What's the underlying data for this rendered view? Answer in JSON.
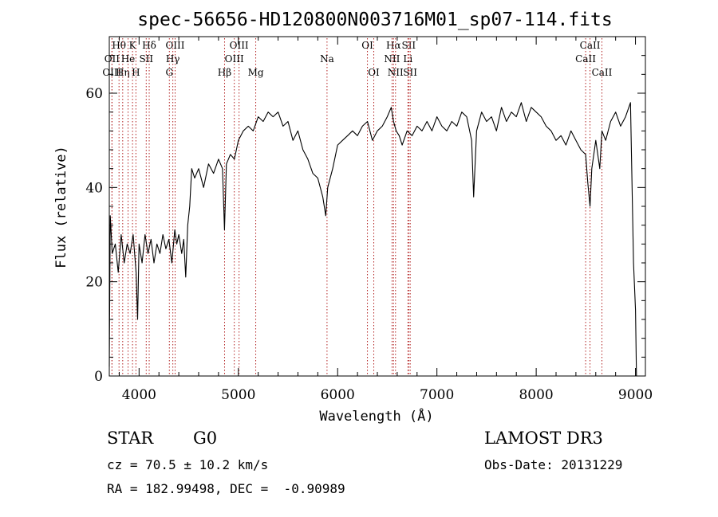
{
  "chart_data": {
    "type": "line",
    "title": "spec-56656-HD120800N003716M01_sp07-114.fits",
    "xlabel": "Wavelength (Å)",
    "ylabel": "Flux (relative)",
    "xlim": [
      3700,
      9100
    ],
    "ylim": [
      0,
      72
    ],
    "x_ticks": [
      4000,
      5000,
      6000,
      7000,
      8000,
      9000
    ],
    "y_ticks": [
      0,
      20,
      40,
      60
    ],
    "grid": false,
    "line_color": "#000000",
    "marker_color": "#b22222",
    "series": [
      {
        "x": [
          3700,
          3710,
          3730,
          3760,
          3790,
          3820,
          3850,
          3880,
          3910,
          3940,
          3970,
          3985,
          4000,
          4030,
          4060,
          4090,
          4120,
          4150,
          4180,
          4210,
          4240,
          4270,
          4300,
          4330,
          4360,
          4380,
          4400,
          4430,
          4450,
          4470,
          4490,
          4510,
          4530,
          4560,
          4600,
          4650,
          4700,
          4750,
          4800,
          4840,
          4860,
          4880,
          4920,
          4960,
          5000,
          5050,
          5100,
          5150,
          5200,
          5250,
          5300,
          5350,
          5400,
          5450,
          5500,
          5550,
          5600,
          5650,
          5700,
          5750,
          5800,
          5850,
          5880,
          5900,
          5950,
          6000,
          6050,
          6100,
          6150,
          6200,
          6250,
          6300,
          6350,
          6400,
          6450,
          6500,
          6540,
          6563,
          6590,
          6620,
          6650,
          6700,
          6750,
          6800,
          6850,
          6900,
          6950,
          7000,
          7050,
          7100,
          7150,
          7200,
          7250,
          7300,
          7350,
          7370,
          7400,
          7450,
          7500,
          7550,
          7600,
          7650,
          7700,
          7750,
          7800,
          7850,
          7900,
          7950,
          8000,
          8050,
          8100,
          8150,
          8200,
          8250,
          8300,
          8350,
          8400,
          8450,
          8498,
          8520,
          8542,
          8560,
          8600,
          8640,
          8662,
          8700,
          8750,
          8800,
          8850,
          8900,
          8950,
          8980,
          9000,
          9010
        ],
        "values": [
          2,
          34,
          26,
          28,
          22,
          30,
          24,
          28,
          26,
          30,
          22,
          12,
          28,
          24,
          30,
          26,
          29,
          24,
          28,
          26,
          30,
          27,
          29,
          24,
          31,
          28,
          30,
          26,
          29,
          21,
          32,
          36,
          44,
          42,
          44,
          40,
          45,
          43,
          46,
          44,
          31,
          45,
          47,
          46,
          50,
          52,
          53,
          52,
          55,
          54,
          56,
          55,
          56,
          53,
          54,
          50,
          52,
          48,
          46,
          43,
          42,
          38,
          34,
          40,
          44,
          49,
          50,
          51,
          52,
          51,
          53,
          54,
          50,
          52,
          53,
          55,
          57,
          54,
          52,
          51,
          49,
          52,
          51,
          53,
          52,
          54,
          52,
          55,
          53,
          52,
          54,
          53,
          56,
          55,
          50,
          38,
          52,
          56,
          54,
          55,
          52,
          57,
          54,
          56,
          55,
          58,
          54,
          57,
          56,
          55,
          53,
          52,
          50,
          51,
          49,
          52,
          50,
          48,
          47,
          41,
          36,
          44,
          50,
          44,
          52,
          50,
          54,
          56,
          53,
          55,
          58,
          24,
          14,
          0
        ]
      }
    ],
    "line_markers": [
      {
        "label": "Hθ",
        "x": 3798,
        "row": 1
      },
      {
        "label": "OII",
        "x": 3727,
        "row": 2
      },
      {
        "label": "OIII",
        "x": 3727,
        "row": 3
      },
      {
        "label": "Hη",
        "x": 3835,
        "row": 3
      },
      {
        "label": "He",
        "x": 3889,
        "row": 2
      },
      {
        "label": "K",
        "x": 3934,
        "row": 1
      },
      {
        "label": "SII",
        "x": 4072,
        "row": 2
      },
      {
        "label": "H",
        "x": 3968,
        "row": 3
      },
      {
        "label": "Hδ",
        "x": 4102,
        "row": 1
      },
      {
        "label": "OIII",
        "x": 4363,
        "row": 1
      },
      {
        "label": "Hγ",
        "x": 4340,
        "row": 2
      },
      {
        "label": "G",
        "x": 4305,
        "row": 3
      },
      {
        "label": "OIII",
        "x": 5007,
        "row": 1
      },
      {
        "label": "OIII",
        "x": 4959,
        "row": 2
      },
      {
        "label": "Hβ",
        "x": 4861,
        "row": 3
      },
      {
        "label": "Mg",
        "x": 5175,
        "row": 3
      },
      {
        "label": "Na",
        "x": 5893,
        "row": 2
      },
      {
        "label": "OI",
        "x": 6300,
        "row": 1
      },
      {
        "label": "OI",
        "x": 6364,
        "row": 3
      },
      {
        "label": "Hα",
        "x": 6563,
        "row": 1
      },
      {
        "label": "SII",
        "x": 6716,
        "row": 1
      },
      {
        "label": "NII",
        "x": 6548,
        "row": 2
      },
      {
        "label": "Li",
        "x": 6708,
        "row": 2
      },
      {
        "label": "NII",
        "x": 6583,
        "row": 3
      },
      {
        "label": "SII",
        "x": 6731,
        "row": 3
      },
      {
        "label": "CaII",
        "x": 8542,
        "row": 1
      },
      {
        "label": "CaII",
        "x": 8498,
        "row": 2
      },
      {
        "label": "CaII",
        "x": 8662,
        "row": 3
      }
    ]
  },
  "info": {
    "object_class": "STAR",
    "subclass": "G0",
    "survey": "LAMOST DR3",
    "cz": "cz = 70.5 ± 10.2 km/s",
    "obs_date": "Obs-Date: 20131229",
    "coords": "RA = 182.99498, DEC =  -0.90989"
  }
}
